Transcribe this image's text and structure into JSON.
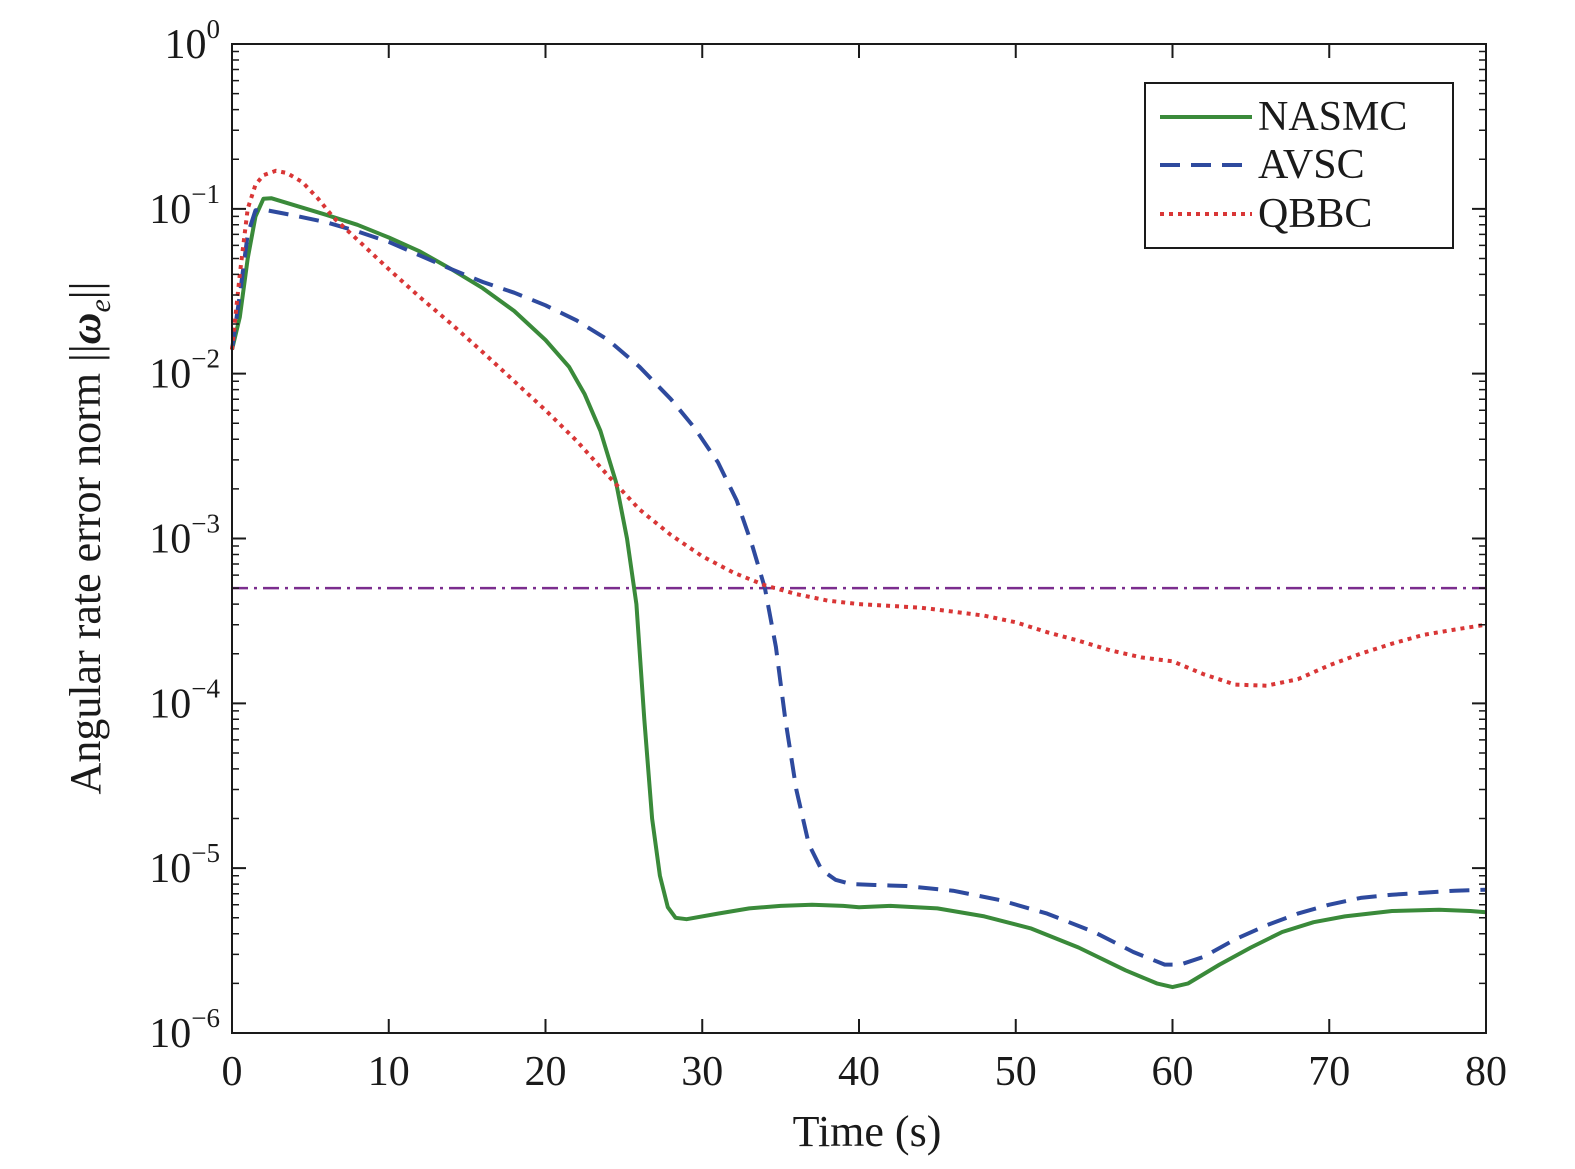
{
  "chart_data": {
    "type": "line",
    "title": "",
    "xlabel": "Time (s)",
    "ylabel": {
      "prefix": "Angular rate error norm ||",
      "symbol": "ω",
      "subscript": "e",
      "suffix": "||"
    },
    "xlim": [
      0,
      80
    ],
    "ylim": [
      1e-06,
      1
    ],
    "yscale": "log",
    "grid": false,
    "legend_position": "top-right",
    "x_ticks": [
      {
        "value": 0,
        "label": "0"
      },
      {
        "value": 10,
        "label": "10"
      },
      {
        "value": 20,
        "label": "20"
      },
      {
        "value": 30,
        "label": "30"
      },
      {
        "value": 40,
        "label": "40"
      },
      {
        "value": 50,
        "label": "50"
      },
      {
        "value": 60,
        "label": "60"
      },
      {
        "value": 70,
        "label": "70"
      },
      {
        "value": 80,
        "label": "80"
      }
    ],
    "y_ticks": [
      {
        "value": 1,
        "base": "10",
        "exp": "0"
      },
      {
        "value": 0.1,
        "base": "10",
        "exp": "−1"
      },
      {
        "value": 0.01,
        "base": "10",
        "exp": "−2"
      },
      {
        "value": 0.001,
        "base": "10",
        "exp": "−3"
      },
      {
        "value": 0.0001,
        "base": "10",
        "exp": "−4"
      },
      {
        "value": 1e-05,
        "base": "10",
        "exp": "−5"
      },
      {
        "value": 1e-06,
        "base": "10",
        "exp": "−6"
      }
    ],
    "reference_line": {
      "y": 0.0005,
      "color": "#7b2d8e",
      "style": "dashdot"
    },
    "series": [
      {
        "name": "NASMC",
        "color": "#3a8a3a",
        "style": "solid",
        "points": [
          [
            0,
            0.014
          ],
          [
            0.5,
            0.022
          ],
          [
            1,
            0.05
          ],
          [
            1.5,
            0.09
          ],
          [
            2,
            0.115
          ],
          [
            2.5,
            0.116
          ],
          [
            4,
            0.105
          ],
          [
            6,
            0.092
          ],
          [
            8,
            0.08
          ],
          [
            10,
            0.067
          ],
          [
            12,
            0.055
          ],
          [
            14,
            0.043
          ],
          [
            16,
            0.033
          ],
          [
            18,
            0.024
          ],
          [
            20,
            0.016
          ],
          [
            21.5,
            0.011
          ],
          [
            22.5,
            0.0075
          ],
          [
            23.5,
            0.0045
          ],
          [
            24.5,
            0.0022
          ],
          [
            25.2,
            0.001
          ],
          [
            25.8,
            0.0004
          ],
          [
            26.3,
            8e-05
          ],
          [
            26.8,
            2e-05
          ],
          [
            27.3,
            9e-06
          ],
          [
            27.8,
            5.8e-06
          ],
          [
            28.3,
            5e-06
          ],
          [
            29,
            4.9e-06
          ],
          [
            31,
            5.3e-06
          ],
          [
            33,
            5.7e-06
          ],
          [
            35,
            5.9e-06
          ],
          [
            37,
            6e-06
          ],
          [
            39,
            5.9e-06
          ],
          [
            40,
            5.8e-06
          ],
          [
            42,
            5.9e-06
          ],
          [
            45,
            5.7e-06
          ],
          [
            48,
            5.1e-06
          ],
          [
            51,
            4.3e-06
          ],
          [
            54,
            3.3e-06
          ],
          [
            57,
            2.4e-06
          ],
          [
            59,
            2e-06
          ],
          [
            60,
            1.9e-06
          ],
          [
            61,
            2e-06
          ],
          [
            63,
            2.6e-06
          ],
          [
            65,
            3.3e-06
          ],
          [
            67,
            4.1e-06
          ],
          [
            69,
            4.7e-06
          ],
          [
            71,
            5.1e-06
          ],
          [
            74,
            5.5e-06
          ],
          [
            77,
            5.6e-06
          ],
          [
            79,
            5.5e-06
          ],
          [
            80,
            5.4e-06
          ]
        ]
      },
      {
        "name": "AVSC",
        "color": "#2e4a9e",
        "style": "dashed",
        "points": [
          [
            0,
            0.014
          ],
          [
            0.5,
            0.03
          ],
          [
            1,
            0.07
          ],
          [
            1.5,
            0.098
          ],
          [
            2,
            0.099
          ],
          [
            4,
            0.091
          ],
          [
            6,
            0.083
          ],
          [
            8,
            0.073
          ],
          [
            10,
            0.063
          ],
          [
            12,
            0.052
          ],
          [
            14,
            0.043
          ],
          [
            16,
            0.036
          ],
          [
            18,
            0.031
          ],
          [
            20,
            0.026
          ],
          [
            22,
            0.021
          ],
          [
            24,
            0.016
          ],
          [
            26,
            0.011
          ],
          [
            28,
            0.007
          ],
          [
            29.5,
            0.0047
          ],
          [
            31,
            0.0029
          ],
          [
            32.2,
            0.0017
          ],
          [
            33.2,
            0.0009
          ],
          [
            34,
            0.0005
          ],
          [
            34.7,
            0.00022
          ],
          [
            35.3,
            8e-05
          ],
          [
            36,
            3e-05
          ],
          [
            36.8,
            1.4e-05
          ],
          [
            37.6,
            9.8e-06
          ],
          [
            38.5,
            8.5e-06
          ],
          [
            39.5,
            8e-06
          ],
          [
            41,
            7.9e-06
          ],
          [
            43,
            7.8e-06
          ],
          [
            46,
            7.3e-06
          ],
          [
            49,
            6.4e-06
          ],
          [
            52,
            5.3e-06
          ],
          [
            55,
            4.1e-06
          ],
          [
            57.5,
            3.1e-06
          ],
          [
            59.5,
            2.6e-06
          ],
          [
            60.5,
            2.6e-06
          ],
          [
            62,
            2.9e-06
          ],
          [
            64,
            3.7e-06
          ],
          [
            66,
            4.5e-06
          ],
          [
            68,
            5.3e-06
          ],
          [
            70,
            6e-06
          ],
          [
            72,
            6.6e-06
          ],
          [
            74,
            6.9e-06
          ],
          [
            76,
            7.1e-06
          ],
          [
            78,
            7.3e-06
          ],
          [
            80,
            7.4e-06
          ]
        ]
      },
      {
        "name": "QBBC",
        "color": "#d93636",
        "style": "dotted",
        "points": [
          [
            0,
            0.014
          ],
          [
            0.5,
            0.04
          ],
          [
            1,
            0.1
          ],
          [
            1.5,
            0.14
          ],
          [
            2,
            0.16
          ],
          [
            2.8,
            0.17
          ],
          [
            3.5,
            0.165
          ],
          [
            4.5,
            0.145
          ],
          [
            5.5,
            0.115
          ],
          [
            6.5,
            0.088
          ],
          [
            8,
            0.065
          ],
          [
            10,
            0.043
          ],
          [
            12,
            0.029
          ],
          [
            14,
            0.02
          ],
          [
            16,
            0.0135
          ],
          [
            18,
            0.009
          ],
          [
            20,
            0.006
          ],
          [
            22,
            0.0039
          ],
          [
            24,
            0.0024
          ],
          [
            26,
            0.0015
          ],
          [
            28,
            0.00105
          ],
          [
            30,
            0.00078
          ],
          [
            32,
            0.00062
          ],
          [
            34,
            0.00052
          ],
          [
            36,
            0.00046
          ],
          [
            38,
            0.00042
          ],
          [
            40,
            0.0004
          ],
          [
            42,
            0.00039
          ],
          [
            44,
            0.00038
          ],
          [
            46,
            0.00036
          ],
          [
            48,
            0.00034
          ],
          [
            50,
            0.00031
          ],
          [
            52,
            0.00027
          ],
          [
            54,
            0.00024
          ],
          [
            56,
            0.00021
          ],
          [
            58,
            0.00019
          ],
          [
            60,
            0.00018
          ],
          [
            62,
            0.00015
          ],
          [
            64,
            0.00013
          ],
          [
            66,
            0.000128
          ],
          [
            68,
            0.00014
          ],
          [
            70,
            0.00017
          ],
          [
            72,
            0.0002
          ],
          [
            74,
            0.00023
          ],
          [
            76,
            0.00026
          ],
          [
            78,
            0.00028
          ],
          [
            80,
            0.0003
          ]
        ]
      }
    ]
  }
}
